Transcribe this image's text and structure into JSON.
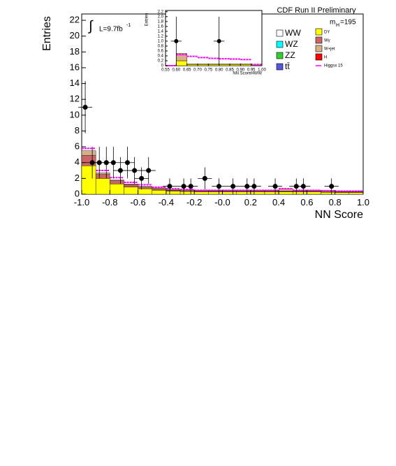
{
  "chart_data": [
    {
      "type": "histogram",
      "title": "CDF Run II Preliminary",
      "xlabel": "NN Score",
      "ylabel": "Entries",
      "annotations": [
        "∫",
        "L=9.7fb",
        "-1",
        "m",
        "H",
        "=195"
      ],
      "bins": [
        -1.0,
        -0.9,
        -0.8,
        -0.7,
        -0.6,
        -0.5,
        -0.4,
        -0.3,
        -0.2,
        -0.1,
        0.0,
        0.1,
        0.2,
        0.3,
        0.4,
        0.5,
        0.6,
        0.7,
        0.8,
        0.9,
        1.0
      ],
      "series": [
        {
          "name": "DY",
          "color": "#ffff00",
          "values": [
            3.6,
            2.0,
            1.3,
            0.9,
            0.7,
            0.5,
            0.4,
            0.35,
            0.3,
            0.3,
            0.3,
            0.3,
            0.3,
            0.3,
            0.3,
            0.3,
            0.3,
            0.25,
            0.2,
            0.2
          ]
        },
        {
          "name": "Wγ",
          "color": "#cc6666",
          "values": [
            1.3,
            0.5,
            0.4,
            0.3,
            0.2,
            0.2,
            0.1,
            0.1,
            0.1,
            0.1,
            0.1,
            0.1,
            0.1,
            0.1,
            0.1,
            0.1,
            0.1,
            0.1,
            0.1,
            0.1
          ]
        },
        {
          "name": "W+jet",
          "color": "#d8b088",
          "values": [
            0.6,
            0.2,
            0.1,
            0.1,
            0.1,
            0.1,
            0.1,
            0.1,
            0.1,
            0.1,
            0.1,
            0.1,
            0.1,
            0.1,
            0.3,
            0.1,
            0.1,
            0.1,
            0.1,
            0.1
          ]
        },
        {
          "name": "Higgsx 15",
          "color": "#ff00ff",
          "style": "line",
          "values": [
            5.8,
            3.0,
            2.1,
            1.5,
            1.2,
            0.9,
            0.7,
            0.6,
            0.5,
            0.5,
            0.5,
            0.5,
            0.5,
            0.5,
            0.7,
            0.5,
            0.5,
            0.45,
            0.4,
            0.4
          ]
        }
      ],
      "legend_only": [
        {
          "name": "WW",
          "color": "#ffffff"
        },
        {
          "name": "WZ",
          "color": "#00ffff"
        },
        {
          "name": "ZZ",
          "color": "#33cc33"
        },
        {
          "name": "tt̄",
          "color": "#5555dd"
        },
        {
          "name": "H",
          "color": "#ff0000"
        }
      ],
      "points": {
        "x": [
          -0.975,
          -0.925,
          -0.875,
          -0.825,
          -0.775,
          -0.725,
          -0.675,
          -0.625,
          -0.575,
          -0.525,
          -0.375,
          -0.275,
          -0.225,
          -0.125,
          -0.025,
          0.075,
          0.175,
          0.225,
          0.375,
          0.525,
          0.575,
          0.775
        ],
        "values": [
          11,
          4,
          4,
          4,
          4,
          3,
          4,
          3,
          2,
          3,
          1,
          1,
          1,
          2,
          1,
          1,
          1,
          1,
          1,
          1,
          1,
          1
        ],
        "errors": [
          3.3,
          2,
          2,
          2,
          2,
          1.7,
          2,
          1.7,
          1.4,
          1.7,
          1,
          1,
          1,
          1.4,
          1,
          1,
          1,
          1,
          1,
          1,
          1,
          1
        ]
      },
      "xlim": [
        -1.0,
        1.0
      ],
      "ylim": [
        0,
        22.8
      ],
      "xticks": [
        {
          "value": -1.0,
          "label": "-1.0"
        },
        -0.8,
        -0.6,
        -0.4,
        -0.2,
        {
          "value": 0,
          "label": "-0.0"
        },
        0.2,
        0.4,
        0.6,
        0.8,
        {
          "value": 1.0,
          "label": "1.0"
        }
      ],
      "yticks": [
        0,
        2,
        4,
        6,
        8,
        10,
        12,
        14,
        16,
        18,
        20,
        22
      ]
    },
    {
      "type": "histogram",
      "xlabel": "NN ScoreHWW",
      "ylabel": "Entries",
      "bins": [
        0.55,
        0.6,
        0.65,
        0.7,
        0.75,
        0.8,
        0.85,
        0.9,
        0.95,
        1.0
      ],
      "series": [
        {
          "color": "#ffff00",
          "values": [
            0,
            0.2,
            0.05,
            0.05,
            0.05,
            0.05,
            0.05,
            0.05,
            0.02
          ]
        },
        {
          "color": "#d8b088",
          "values": [
            0,
            0.3,
            0.02,
            0.02,
            0.02,
            0.02,
            0.02,
            0.02,
            0.01
          ]
        },
        {
          "color": "#ff00ff",
          "style": "line",
          "values": [
            0,
            0.45,
            0.38,
            0.33,
            0.3,
            0.28,
            0.27,
            0.25,
            0.05
          ]
        }
      ],
      "points": {
        "x": [
          0.6,
          0.8
        ],
        "values": [
          1,
          1
        ],
        "errors": [
          1,
          1
        ]
      },
      "xlim": [
        0.55,
        1.0
      ],
      "ylim": [
        0,
        2.25
      ],
      "xticks": [
        0.55,
        {
          "value": 0.6,
          "label": "0.60"
        },
        0.65,
        {
          "value": 0.7,
          "label": "0.70"
        },
        0.75,
        {
          "value": 0.8,
          "label": "0.80"
        },
        0.85,
        {
          "value": 0.9,
          "label": "0.90"
        },
        0.95,
        {
          "value": 1.0,
          "label": "1.00"
        }
      ],
      "yticks": [
        0,
        0.2,
        0.4,
        0.6,
        0.8,
        {
          "value": 1.0,
          "label": "1.0"
        },
        1.2,
        1.4,
        1.6,
        1.8,
        {
          "value": 2.0,
          "label": "2.0"
        },
        2.2
      ]
    }
  ]
}
